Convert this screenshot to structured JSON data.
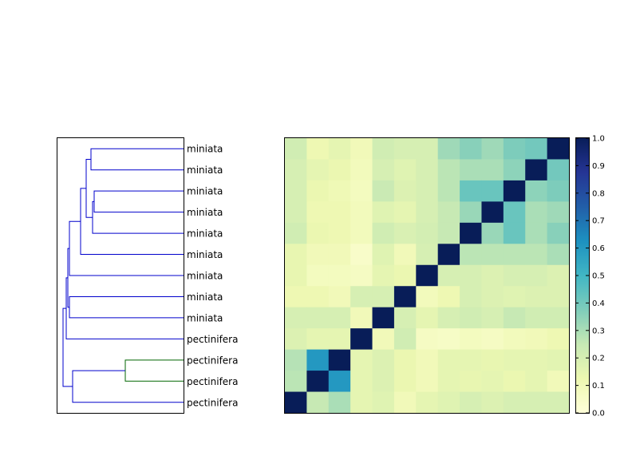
{
  "chart_data": [
    {
      "type": "dendrogram",
      "leaves_top_to_bottom": [
        "miniata",
        "miniata",
        "miniata",
        "miniata",
        "miniata",
        "miniata",
        "miniata",
        "miniata",
        "miniata",
        "pectinifera",
        "pectinifera",
        "pectinifera",
        "pectinifera"
      ],
      "link_colors": {
        "main": "#0000cc",
        "cluster": "#006600"
      }
    },
    {
      "type": "heatmap",
      "colormap": "YlGnBu",
      "vmin": 0.0,
      "vmax": 1.0,
      "colorbar_ticks": [
        "0.0",
        "0.1",
        "0.2",
        "0.3",
        "0.4",
        "0.5",
        "0.6",
        "0.7",
        "0.8",
        "0.9",
        "1.0"
      ],
      "rows_top_to_bottom": [
        [
          0.22,
          0.12,
          0.15,
          0.1,
          0.22,
          0.2,
          0.2,
          0.32,
          0.36,
          0.32,
          0.38,
          0.4,
          1.0
        ],
        [
          0.2,
          0.15,
          0.13,
          0.09,
          0.2,
          0.17,
          0.2,
          0.27,
          0.3,
          0.3,
          0.35,
          1.0,
          0.4
        ],
        [
          0.2,
          0.13,
          0.11,
          0.08,
          0.24,
          0.18,
          0.2,
          0.27,
          0.42,
          0.42,
          1.0,
          0.35,
          0.38
        ],
        [
          0.2,
          0.12,
          0.12,
          0.09,
          0.17,
          0.15,
          0.2,
          0.25,
          0.33,
          1.0,
          0.42,
          0.3,
          0.32
        ],
        [
          0.22,
          0.13,
          0.12,
          0.09,
          0.22,
          0.19,
          0.21,
          0.25,
          1.0,
          0.33,
          0.42,
          0.3,
          0.36
        ],
        [
          0.14,
          0.1,
          0.1,
          0.05,
          0.17,
          0.1,
          0.2,
          1.0,
          0.27,
          0.27,
          0.27,
          0.27,
          0.3
        ],
        [
          0.14,
          0.08,
          0.08,
          0.07,
          0.15,
          0.13,
          1.0,
          0.2,
          0.2,
          0.18,
          0.2,
          0.2,
          0.18
        ],
        [
          0.12,
          0.12,
          0.1,
          0.2,
          0.2,
          1.0,
          0.09,
          0.12,
          0.2,
          0.18,
          0.17,
          0.18,
          0.18
        ],
        [
          0.2,
          0.2,
          0.2,
          0.1,
          1.0,
          0.2,
          0.15,
          0.2,
          0.22,
          0.2,
          0.25,
          0.22,
          0.22
        ],
        [
          0.18,
          0.15,
          0.15,
          1.0,
          0.1,
          0.22,
          0.07,
          0.06,
          0.08,
          0.07,
          0.09,
          0.1,
          0.12
        ],
        [
          0.28,
          0.6,
          1.0,
          0.15,
          0.18,
          0.13,
          0.1,
          0.15,
          0.15,
          0.14,
          0.15,
          0.15,
          0.16
        ],
        [
          0.27,
          1.0,
          0.6,
          0.15,
          0.18,
          0.13,
          0.1,
          0.15,
          0.14,
          0.15,
          0.13,
          0.15,
          0.1
        ],
        [
          1.0,
          0.25,
          0.3,
          0.15,
          0.17,
          0.1,
          0.15,
          0.17,
          0.2,
          0.18,
          0.2,
          0.2,
          0.2
        ]
      ]
    }
  ]
}
